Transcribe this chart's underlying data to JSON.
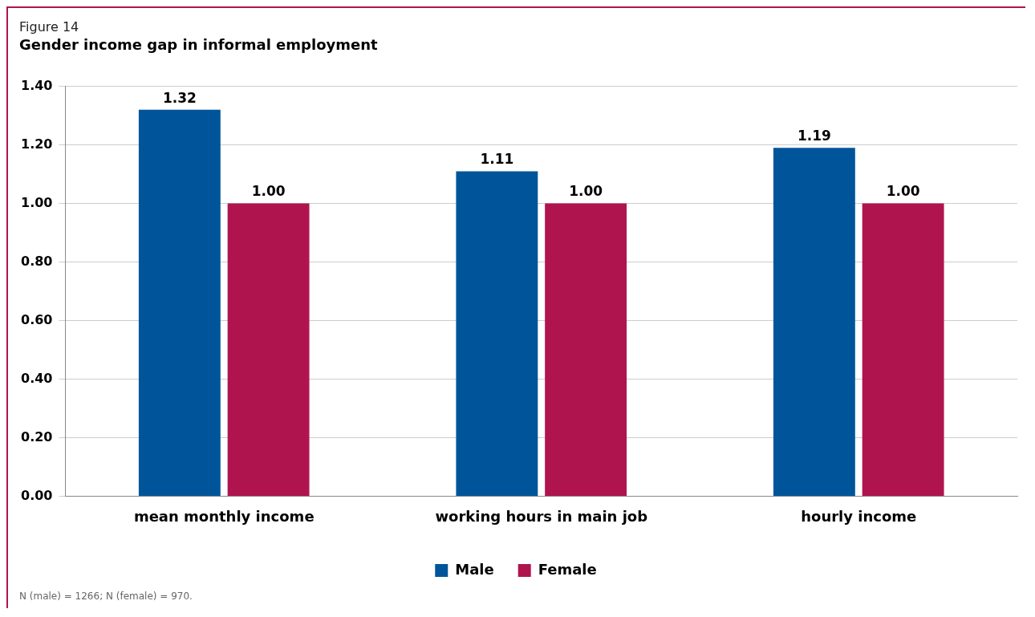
{
  "chart_data": {
    "type": "bar",
    "title": "Gender income gap in informal employment",
    "categories": [
      "mean monthly income",
      "working hours in main job",
      "hourly income"
    ],
    "series": [
      {
        "name": "Male",
        "color": "#00559a",
        "values": [
          1.32,
          1.11,
          1.19
        ],
        "value_labels": [
          "1.32",
          "1.11",
          "1.19"
        ]
      },
      {
        "name": "Female",
        "color": "#b0144f",
        "values": [
          1,
          1,
          1
        ],
        "value_labels": [
          "1.00",
          "1.00",
          "1.00"
        ]
      }
    ],
    "ylim": [
      0,
      1.4
    ],
    "yticks": [
      {
        "value": 0,
        "label": "0.00"
      },
      {
        "value": 0.2,
        "label": "0.20"
      },
      {
        "value": 0.4,
        "label": "0.40"
      },
      {
        "value": 0.6,
        "label": "0.60"
      },
      {
        "value": 0.8,
        "label": "0.80"
      },
      {
        "value": 1,
        "label": "1.00"
      },
      {
        "value": 1.2,
        "label": "1.20"
      },
      {
        "value": 1.4,
        "label": "1.40"
      }
    ],
    "grid": "y",
    "legend": "bottom",
    "annotations": [
      "Figure 14",
      "N (male) = 1266; N (female) = 970."
    ]
  }
}
